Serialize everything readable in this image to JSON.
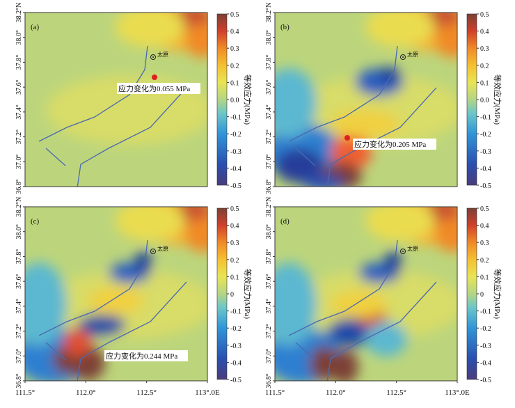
{
  "panels": [
    {
      "label": "(a)",
      "annotation": "应力变化为0.055 MPa",
      "colorbar_ticks": [
        0.5,
        0.4,
        0.3,
        0.2,
        0.1,
        {
          "value": 0,
          "label": "0.0"
        },
        -0.1,
        -0.2,
        -0.3,
        -0.4,
        -0.5
      ]
    },
    {
      "label": "(b)",
      "annotation": "应力变化为0.205 MPa",
      "colorbar_ticks": [
        0.5,
        0.4,
        0.3,
        0.2,
        0.1,
        {
          "value": 0,
          "label": "0.0"
        },
        -0.1,
        -0.2,
        -0.3,
        -0.4,
        -0.5
      ]
    },
    {
      "label": "(c)",
      "annotation": "应力变化为0.244 MPa",
      "colorbar_ticks": [
        0.5,
        0.4,
        0.3,
        0.2,
        0.1,
        0,
        -0.1,
        -0.2,
        -0.3,
        -0.4,
        -0.5
      ]
    },
    {
      "label": "(d)",
      "colorbar_ticks": [
        0.5,
        0.4,
        0.3,
        0.2,
        0.1,
        0,
        -0.1,
        -0.2,
        -0.3,
        -0.4,
        -0.5
      ]
    }
  ],
  "city": "太原",
  "colorbar_title": "等效应力(MPa)",
  "colorbar_range": [
    -0.5,
    0.5
  ],
  "lat_range": [
    36.8,
    38.2
  ],
  "lon_range": [
    111.5,
    113.0
  ],
  "lat_ticks": [
    {
      "value": 36.8,
      "label": "36.8°"
    },
    {
      "value": 37.0,
      "label": "37.0°"
    },
    {
      "value": 37.2,
      "label": "37.2°"
    },
    {
      "value": 37.4,
      "label": "37.4°"
    },
    {
      "value": 37.6,
      "label": "37.6°"
    },
    {
      "value": 37.8,
      "label": "37.8°"
    },
    {
      "value": 38.0,
      "label": "38.0°"
    },
    {
      "value": 38.2,
      "label": "38.2°N"
    }
  ],
  "lon_ticks": [
    {
      "value": 111.5,
      "label": "111.5°"
    },
    {
      "value": 112.0,
      "label": "112.0°"
    },
    {
      "value": 112.5,
      "label": "112.5°"
    },
    {
      "value": 113.0,
      "label": "113°.0E"
    }
  ]
}
